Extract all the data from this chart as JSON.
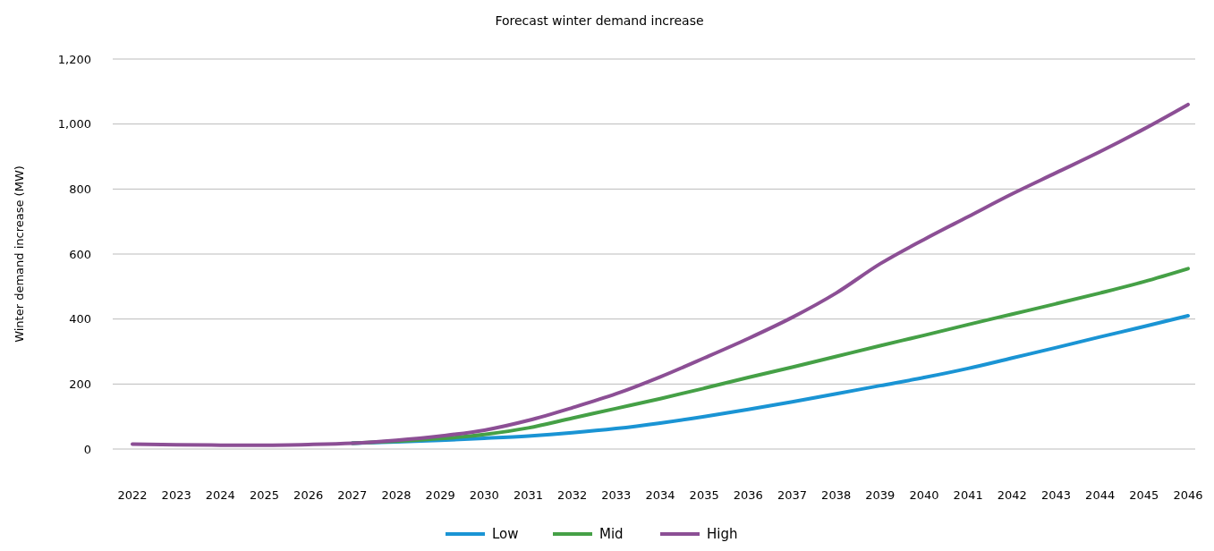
{
  "chart_data": {
    "type": "line",
    "title": "Forecast winter demand increase",
    "ylabel": "Winter demand increase (MW)",
    "categories": [
      "2022",
      "2023",
      "2024",
      "2025",
      "2026",
      "2027",
      "2028",
      "2029",
      "2030",
      "2031",
      "2032",
      "2033",
      "2034",
      "2035",
      "2036",
      "2037",
      "2038",
      "2039",
      "2040",
      "2041",
      "2042",
      "2043",
      "2044",
      "2045",
      "2046"
    ],
    "series": [
      {
        "name": "Low",
        "color": "#1a94d4",
        "values": [
          null,
          null,
          null,
          null,
          null,
          18,
          22,
          27,
          33,
          40,
          50,
          63,
          80,
          100,
          122,
          145,
          170,
          195,
          220,
          248,
          280,
          312,
          345,
          377,
          410
        ]
      },
      {
        "name": "Mid",
        "color": "#45a046",
        "values": [
          null,
          null,
          null,
          null,
          null,
          18,
          24,
          32,
          45,
          65,
          95,
          125,
          155,
          187,
          220,
          252,
          285,
          318,
          350,
          383,
          415,
          447,
          480,
          515,
          555
        ]
      },
      {
        "name": "High",
        "color": "#8c4f95",
        "values": [
          15,
          13,
          12,
          12,
          14,
          18,
          27,
          40,
          58,
          88,
          127,
          170,
          222,
          280,
          340,
          405,
          480,
          570,
          645,
          715,
          785,
          850,
          915,
          985,
          1060
        ]
      }
    ],
    "ylim": [
      0,
      1200
    ],
    "yticks": [
      {
        "value": 0,
        "label": "0"
      },
      {
        "value": 200,
        "label": "200"
      },
      {
        "value": 400,
        "label": "400"
      },
      {
        "value": 600,
        "label": "600"
      },
      {
        "value": 800,
        "label": "800"
      },
      {
        "value": 1000,
        "label": "1,000"
      },
      {
        "value": 1200,
        "label": "1,200"
      }
    ],
    "grid": "y",
    "legend": "bottom",
    "marker": "none",
    "line_style": "solid"
  }
}
